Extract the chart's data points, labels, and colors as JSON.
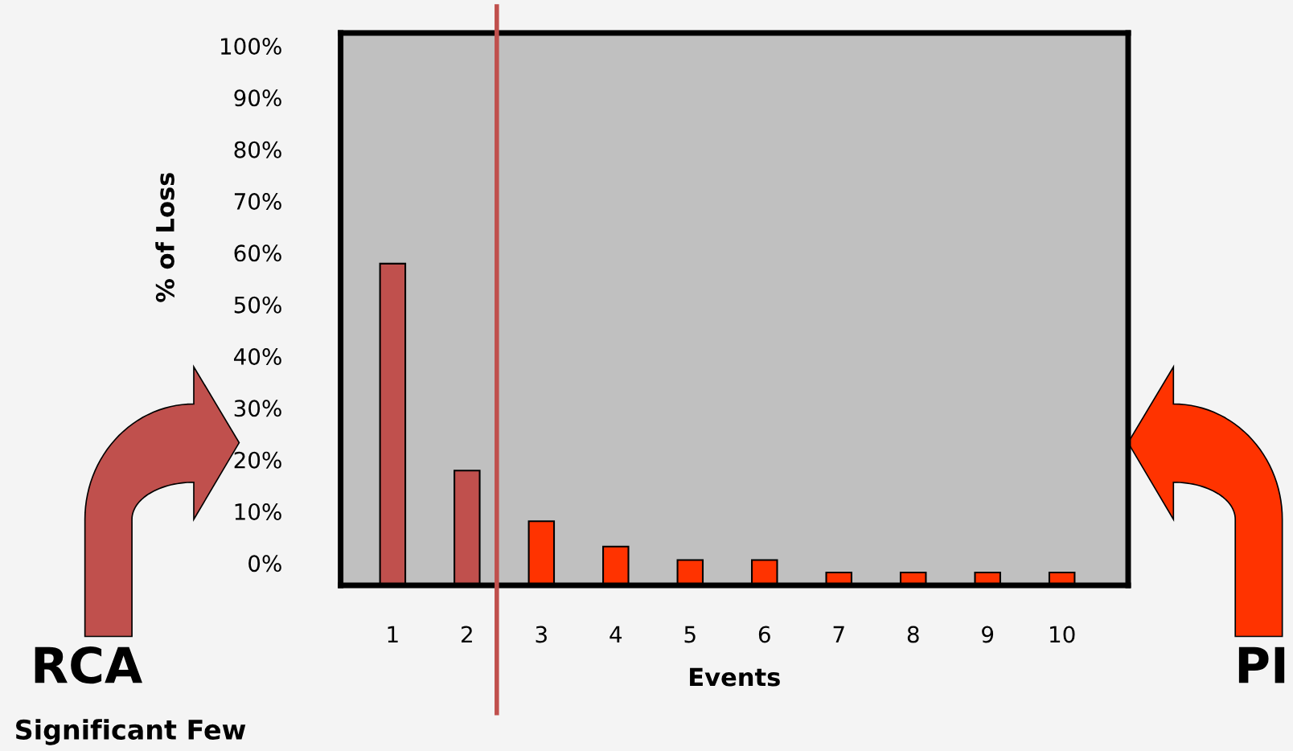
{
  "chart_data": {
    "type": "bar",
    "xlabel": "Events",
    "ylabel": "% of Loss",
    "x": [
      1,
      2,
      3,
      4,
      5,
      6,
      7,
      8,
      9,
      10
    ],
    "base": [
      -4.3,
      -4.3,
      -4.3,
      -4.3,
      -4.3,
      -4.3,
      -4.3,
      -4.3,
      -4.3,
      -4.3
    ],
    "values": [
      62.2,
      22.2,
      12.4,
      7.5,
      4.9,
      4.9,
      2.5,
      2.5,
      2.5,
      2.5
    ],
    "colors": [
      "#c0504d",
      "#c0504d",
      "#ff3300",
      "#ff3300",
      "#ff3300",
      "#ff3300",
      "#ff3300",
      "#ff3300",
      "#ff3300",
      "#ff3300"
    ],
    "xlim": [
      0.3,
      10.89
    ],
    "ylim": [
      -4.3,
      102.5
    ],
    "xticks": [
      1,
      2,
      3,
      4,
      5,
      6,
      7,
      8,
      9,
      10
    ],
    "yticks": [
      {
        "value": 0,
        "label": "0%"
      },
      {
        "value": 10,
        "label": "10%"
      },
      {
        "value": 20,
        "label": "20%"
      },
      {
        "value": 30,
        "label": "30%"
      },
      {
        "value": 40,
        "label": "40%"
      },
      {
        "value": 50,
        "label": "50%"
      },
      {
        "value": 60,
        "label": "60%"
      },
      {
        "value": 70,
        "label": "70%"
      },
      {
        "value": 80,
        "label": "80%"
      },
      {
        "value": 90,
        "label": "90%"
      },
      {
        "value": 100,
        "label": "100%"
      }
    ],
    "ref_lines": [
      {
        "axis": "x",
        "value": 2.4,
        "color": "#c0504d"
      }
    ],
    "grid": false,
    "legend": false,
    "annotations": [
      "RCA",
      "Significant Few",
      "PI"
    ]
  }
}
